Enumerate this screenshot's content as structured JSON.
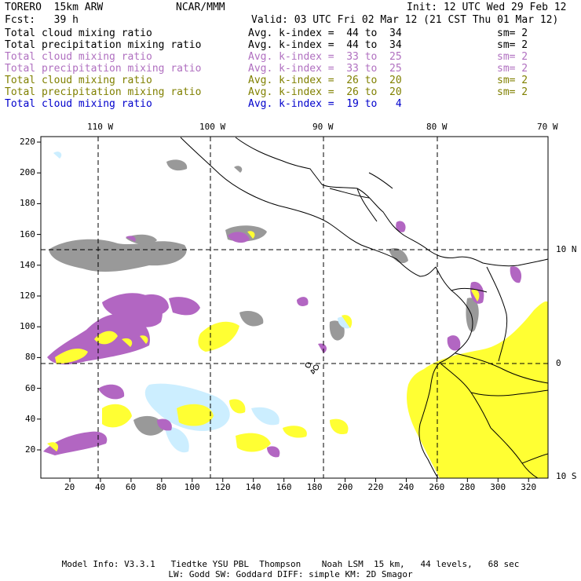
{
  "header": {
    "model": "TORERO  15km ARW",
    "org": "NCAR/MMM",
    "init": "Init: 12 UTC Wed 29 Feb 12",
    "fcst": "Fcst:   39 h",
    "valid": "Valid: 03 UTC Fri 02 Mar 12 (21 CST Thu 01 Mar 12)"
  },
  "legend": [
    {
      "label": "Total cloud mixing ratio",
      "kindex": "Avg. k-index =  44 to  34",
      "sm": "sm= 2",
      "color": "#000000"
    },
    {
      "label": "Total precipitation mixing ratio",
      "kindex": "Avg. k-index =  44 to  34",
      "sm": "sm= 2",
      "color": "#000000"
    },
    {
      "label": "Total cloud mixing ratio",
      "kindex": "Avg. k-index =  33 to  25",
      "sm": "sm= 2",
      "color": "#b070c0"
    },
    {
      "label": "Total precipitation mixing ratio",
      "kindex": "Avg. k-index =  33 to  25",
      "sm": "sm= 2",
      "color": "#b070c0"
    },
    {
      "label": "Total cloud mixing ratio",
      "kindex": "Avg. k-index =  26 to  20",
      "sm": "sm= 2",
      "color": "#808000"
    },
    {
      "label": "Total precipitation mixing ratio",
      "kindex": "Avg. k-index =  26 to  20",
      "sm": "sm= 2",
      "color": "#808000"
    },
    {
      "label": "Total cloud mixing ratio",
      "kindex": "Avg. k-index =  19 to   4",
      "sm": "",
      "color": "#0000cc"
    }
  ],
  "map": {
    "top_lon_labels": [
      "110 W",
      "100 W",
      "90 W",
      "80 W",
      "70 W"
    ],
    "right_lat_labels": [
      "10 N",
      "0",
      "10 S"
    ],
    "left_y_ticks": [
      "220",
      "200",
      "180",
      "160",
      "140",
      "120",
      "100",
      "80",
      "60",
      "40",
      "20"
    ],
    "bottom_x_ticks": [
      "20",
      "40",
      "60",
      "80",
      "100",
      "120",
      "140",
      "160",
      "180",
      "200",
      "220",
      "240",
      "260",
      "280",
      "300",
      "320"
    ],
    "colors": {
      "gray_cloud": "#999999",
      "purple_precip": "#b266c2",
      "yellow": "#ffff33",
      "cyan": "#cceeff",
      "coast": "#000000"
    }
  },
  "footer": {
    "line1": "Model Info: V3.3.1   Tiedtke YSU PBL  Thompson    Noah LSM  15 km,   44 levels,   68 sec",
    "line2": "LW: Godd SW: Goddard DIFF: simple KM: 2D Smagor"
  }
}
